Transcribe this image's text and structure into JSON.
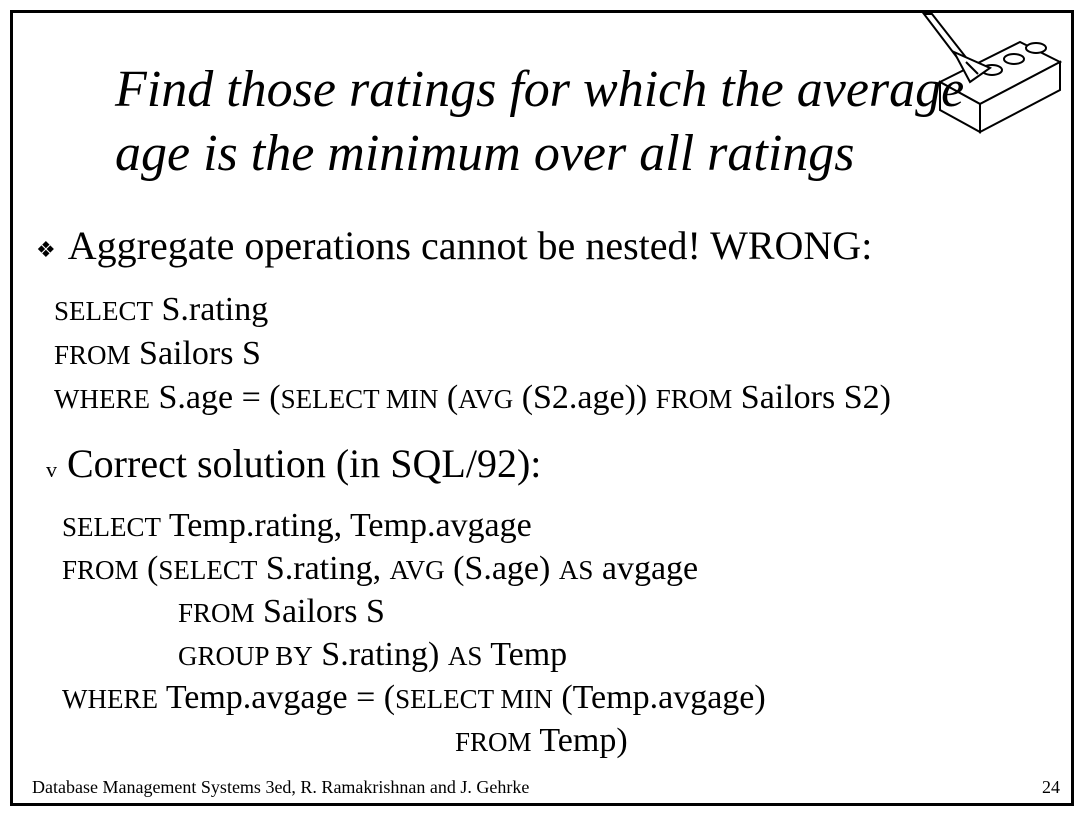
{
  "title": {
    "line1": "Find those ratings for which the average",
    "line2": "age is the minimum over all ratings"
  },
  "bullet1": {
    "icon": "diamond-bullet-icon",
    "text": "Aggregate operations cannot be nested!  WRONG:"
  },
  "wrong_query": {
    "line1": {
      "kw1": "SELECT",
      "t1": " S.rating"
    },
    "line2": {
      "kw1": "FROM",
      "t1": "  Sailors S"
    },
    "line3": {
      "kw1": "WHERE",
      "t1": "  S.age =  (",
      "kw2": "SELECT  MIN",
      "t2": " (",
      "kw3": "AVG",
      "t3": " (S2.age))  ",
      "kw4": "FROM",
      "t4": " Sailors S2)"
    }
  },
  "bullet2": {
    "mark": "v",
    "text": "Correct solution (in SQL/92):"
  },
  "correct_query": {
    "line1": {
      "kw1": "SELECT",
      "t1": "  Temp.rating, Temp.avgage"
    },
    "line2": {
      "kw1": "FROM",
      "t1": "  (",
      "kw2": "SELECT",
      "t2": "  S.rating, ",
      "kw3": "AVG",
      "t3": " (S.age) ",
      "kw4": "AS",
      "t4": " avgage"
    },
    "line3": {
      "kw1": "FROM",
      "t1": "  Sailors S"
    },
    "line4": {
      "kw1": "GROUP BY",
      "t1": "  S.rating) ",
      "kw2": "AS",
      "t2": " Temp"
    },
    "line5": {
      "kw1": "WHERE",
      "t1": "  Temp.avgage = (",
      "kw2": "SELECT  MIN",
      "t2": " (Temp.avgage)"
    },
    "line6": {
      "kw1": "FROM",
      "t1": "  Temp)"
    }
  },
  "footer": {
    "source": "Database Management Systems 3ed,  R. Ramakrishnan and J. Gehrke",
    "page_number": "24"
  },
  "logo": {
    "icon": "brick-and-trowel-icon"
  }
}
